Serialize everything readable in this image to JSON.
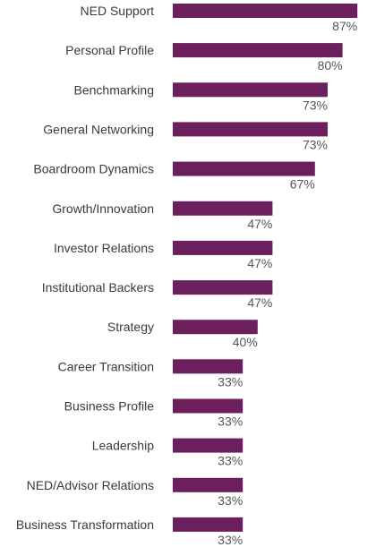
{
  "chart_data": {
    "type": "bar",
    "orientation": "horizontal",
    "categories": [
      "NED Support",
      "Personal Profile",
      "Benchmarking",
      "General Networking",
      "Boardroom Dynamics",
      "Growth/Innovation",
      "Investor Relations",
      "Institutional Backers",
      "Strategy",
      "Career Transition",
      "Business Profile",
      "Leadership",
      "NED/Advisor Relations",
      "Business Transformation"
    ],
    "values": [
      87,
      80,
      73,
      73,
      67,
      47,
      47,
      47,
      40,
      33,
      33,
      33,
      33,
      33
    ],
    "value_labels": [
      "87%",
      "80%",
      "73%",
      "73%",
      "67%",
      "47%",
      "47%",
      "47%",
      "40%",
      "33%",
      "33%",
      "33%",
      "33%",
      "33%"
    ],
    "unit": "%",
    "xlim": [
      0,
      100
    ],
    "grid": false,
    "legend": "none",
    "bar_color": "#6b1f5c"
  }
}
